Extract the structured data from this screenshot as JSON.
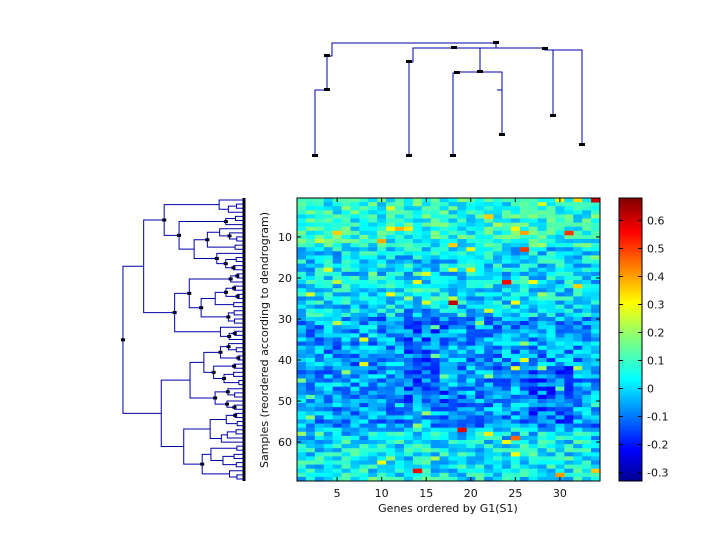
{
  "chart_data": {
    "type": "heatmap",
    "xlabel": "Genes ordered by G1(S1)",
    "ylabel": "Samples (reordered according to dendrogram)",
    "n_columns": 34,
    "n_rows": 69,
    "x_ticks": [
      5,
      10,
      15,
      20,
      25,
      30
    ],
    "y_ticks": [
      10,
      20,
      30,
      40,
      50,
      60
    ],
    "colorbar": {
      "min": -0.33,
      "max": 0.68,
      "ticks": [
        -0.3,
        -0.2,
        -0.1,
        0,
        0.1,
        0.2,
        0.3,
        0.4,
        0.5,
        0.6
      ],
      "colormap": "jet"
    },
    "top_dendrogram": "clustering of the 7 gene groups (columns)",
    "left_dendrogram": "clustering of the 69 samples (rows)",
    "line_color": "#0000aa"
  }
}
